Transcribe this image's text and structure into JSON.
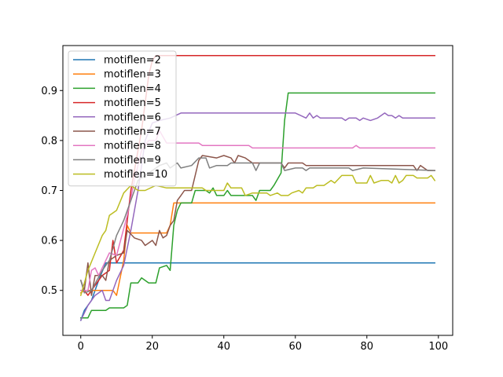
{
  "chart_data": {
    "type": "line",
    "title": "",
    "xlabel": "",
    "ylabel": "",
    "xlim": [
      -5,
      104
    ],
    "ylim": [
      0.41,
      0.99
    ],
    "xticks": [
      0,
      20,
      40,
      60,
      80,
      100
    ],
    "yticks": [
      0.5,
      0.6,
      0.7,
      0.8,
      0.9
    ],
    "ytick_labels": [
      "0.5",
      "0.6",
      "0.7",
      "0.8",
      "0.9"
    ],
    "grid": false,
    "legend": "upper left",
    "series": [
      {
        "name": "motiflen=2",
        "color": "#1f77b4",
        "points": [
          [
            0,
            0.44
          ],
          [
            1,
            0.46
          ],
          [
            3,
            0.48
          ],
          [
            5,
            0.52
          ],
          [
            7,
            0.555
          ],
          [
            99,
            0.555
          ]
        ]
      },
      {
        "name": "motiflen=3",
        "color": "#ff7f0e",
        "points": [
          [
            0,
            0.495
          ],
          [
            1,
            0.5
          ],
          [
            9,
            0.5
          ],
          [
            10,
            0.49
          ],
          [
            12,
            0.56
          ],
          [
            13,
            0.63
          ],
          [
            14,
            0.615
          ],
          [
            24,
            0.615
          ],
          [
            25,
            0.63
          ],
          [
            26,
            0.675
          ],
          [
            99,
            0.675
          ]
        ]
      },
      {
        "name": "motiflen=4",
        "color": "#2ca02c",
        "points": [
          [
            0,
            0.445
          ],
          [
            2,
            0.445
          ],
          [
            3,
            0.46
          ],
          [
            7,
            0.46
          ],
          [
            8,
            0.465
          ],
          [
            12,
            0.465
          ],
          [
            13,
            0.47
          ],
          [
            14,
            0.515
          ],
          [
            16,
            0.515
          ],
          [
            17,
            0.525
          ],
          [
            19,
            0.515
          ],
          [
            21,
            0.515
          ],
          [
            22,
            0.545
          ],
          [
            24,
            0.55
          ],
          [
            25,
            0.54
          ],
          [
            26,
            0.63
          ],
          [
            27,
            0.66
          ],
          [
            28,
            0.675
          ],
          [
            31,
            0.675
          ],
          [
            32,
            0.7
          ],
          [
            35,
            0.7
          ],
          [
            36,
            0.695
          ],
          [
            37,
            0.705
          ],
          [
            38,
            0.69
          ],
          [
            40,
            0.69
          ],
          [
            41,
            0.7
          ],
          [
            42,
            0.69
          ],
          [
            48,
            0.69
          ],
          [
            49,
            0.68
          ],
          [
            50,
            0.7
          ],
          [
            53,
            0.7
          ],
          [
            54,
            0.71
          ],
          [
            56,
            0.735
          ],
          [
            57,
            0.84
          ],
          [
            58,
            0.895
          ],
          [
            99,
            0.895
          ]
        ]
      },
      {
        "name": "motiflen=5",
        "color": "#d62728",
        "points": [
          [
            0,
            0.5
          ],
          [
            1,
            0.5
          ],
          [
            2,
            0.49
          ],
          [
            3,
            0.5
          ],
          [
            6,
            0.53
          ],
          [
            8,
            0.54
          ],
          [
            9,
            0.6
          ],
          [
            10,
            0.555
          ],
          [
            12,
            0.58
          ],
          [
            14,
            0.7
          ],
          [
            17,
            0.82
          ],
          [
            19,
            0.93
          ],
          [
            20,
            0.96
          ],
          [
            21,
            0.97
          ],
          [
            99,
            0.97
          ]
        ]
      },
      {
        "name": "motiflen=6",
        "color": "#9467bd",
        "points": [
          [
            0,
            0.44
          ],
          [
            2,
            0.47
          ],
          [
            4,
            0.49
          ],
          [
            6,
            0.5
          ],
          [
            7,
            0.48
          ],
          [
            8,
            0.48
          ],
          [
            10,
            0.52
          ],
          [
            12,
            0.55
          ],
          [
            14,
            0.62
          ],
          [
            16,
            0.7
          ],
          [
            18,
            0.8
          ],
          [
            20,
            0.835
          ],
          [
            22,
            0.84
          ],
          [
            25,
            0.845
          ],
          [
            28,
            0.855
          ],
          [
            60,
            0.855
          ],
          [
            63,
            0.845
          ],
          [
            64,
            0.855
          ],
          [
            65,
            0.845
          ],
          [
            66,
            0.85
          ],
          [
            67,
            0.845
          ],
          [
            73,
            0.845
          ],
          [
            74,
            0.84
          ],
          [
            75,
            0.845
          ],
          [
            77,
            0.845
          ],
          [
            78,
            0.84
          ],
          [
            79,
            0.845
          ],
          [
            81,
            0.84
          ],
          [
            83,
            0.845
          ],
          [
            85,
            0.855
          ],
          [
            86,
            0.85
          ],
          [
            87,
            0.85
          ],
          [
            88,
            0.845
          ],
          [
            89,
            0.85
          ],
          [
            90,
            0.845
          ],
          [
            98,
            0.845
          ],
          [
            99,
            0.845
          ]
        ]
      },
      {
        "name": "motiflen=7",
        "color": "#8c564b",
        "points": [
          [
            0,
            0.52
          ],
          [
            1,
            0.5
          ],
          [
            2,
            0.555
          ],
          [
            3,
            0.49
          ],
          [
            4,
            0.53
          ],
          [
            6,
            0.53
          ],
          [
            7,
            0.52
          ],
          [
            8,
            0.56
          ],
          [
            10,
            0.57
          ],
          [
            12,
            0.575
          ],
          [
            13,
            0.62
          ],
          [
            15,
            0.605
          ],
          [
            17,
            0.6
          ],
          [
            18,
            0.59
          ],
          [
            20,
            0.6
          ],
          [
            21,
            0.59
          ],
          [
            22,
            0.62
          ],
          [
            23,
            0.605
          ],
          [
            24,
            0.61
          ],
          [
            25,
            0.63
          ],
          [
            26,
            0.64
          ],
          [
            27,
            0.68
          ],
          [
            28,
            0.69
          ],
          [
            29,
            0.7
          ],
          [
            31,
            0.7
          ],
          [
            33,
            0.76
          ],
          [
            34,
            0.77
          ],
          [
            38,
            0.765
          ],
          [
            40,
            0.77
          ],
          [
            42,
            0.765
          ],
          [
            43,
            0.755
          ],
          [
            44,
            0.77
          ],
          [
            46,
            0.765
          ],
          [
            48,
            0.755
          ],
          [
            56,
            0.755
          ],
          [
            57,
            0.745
          ],
          [
            58,
            0.755
          ],
          [
            62,
            0.755
          ],
          [
            63,
            0.75
          ],
          [
            93,
            0.75
          ],
          [
            94,
            0.74
          ],
          [
            95,
            0.75
          ],
          [
            97,
            0.74
          ],
          [
            99,
            0.74
          ]
        ]
      },
      {
        "name": "motiflen=8",
        "color": "#e377c2",
        "points": [
          [
            0,
            0.5
          ],
          [
            2,
            0.5
          ],
          [
            3,
            0.54
          ],
          [
            4,
            0.545
          ],
          [
            5,
            0.53
          ],
          [
            7,
            0.56
          ],
          [
            8,
            0.575
          ],
          [
            10,
            0.57
          ],
          [
            13,
            0.65
          ],
          [
            15,
            0.72
          ],
          [
            17,
            0.78
          ],
          [
            19,
            0.8
          ],
          [
            21,
            0.8
          ],
          [
            22,
            0.82
          ],
          [
            24,
            0.795
          ],
          [
            33,
            0.795
          ],
          [
            34,
            0.79
          ],
          [
            47,
            0.79
          ],
          [
            48,
            0.785
          ],
          [
            76,
            0.785
          ],
          [
            77,
            0.79
          ],
          [
            78,
            0.785
          ],
          [
            99,
            0.785
          ]
        ]
      },
      {
        "name": "motiflen=9",
        "color": "#7f7f7f",
        "points": [
          [
            0,
            0.52
          ],
          [
            1,
            0.495
          ],
          [
            3,
            0.5
          ],
          [
            6,
            0.54
          ],
          [
            8,
            0.56
          ],
          [
            10,
            0.61
          ],
          [
            12,
            0.64
          ],
          [
            14,
            0.68
          ],
          [
            16,
            0.72
          ],
          [
            18,
            0.73
          ],
          [
            20,
            0.74
          ],
          [
            22,
            0.75
          ],
          [
            24,
            0.755
          ],
          [
            25,
            0.745
          ],
          [
            27,
            0.755
          ],
          [
            28,
            0.745
          ],
          [
            31,
            0.75
          ],
          [
            33,
            0.765
          ],
          [
            35,
            0.765
          ],
          [
            36,
            0.745
          ],
          [
            38,
            0.75
          ],
          [
            41,
            0.75
          ],
          [
            42,
            0.755
          ],
          [
            48,
            0.755
          ],
          [
            49,
            0.74
          ],
          [
            50,
            0.755
          ],
          [
            56,
            0.755
          ],
          [
            57,
            0.74
          ],
          [
            60,
            0.745
          ],
          [
            61,
            0.745
          ],
          [
            62,
            0.745
          ],
          [
            63,
            0.74
          ],
          [
            64,
            0.745
          ],
          [
            75,
            0.745
          ],
          [
            76,
            0.74
          ],
          [
            79,
            0.745
          ],
          [
            99,
            0.74
          ]
        ]
      },
      {
        "name": "motiflen=10",
        "color": "#bcbd22",
        "points": [
          [
            0,
            0.49
          ],
          [
            2,
            0.54
          ],
          [
            4,
            0.575
          ],
          [
            6,
            0.61
          ],
          [
            7,
            0.62
          ],
          [
            8,
            0.65
          ],
          [
            10,
            0.66
          ],
          [
            12,
            0.695
          ],
          [
            14,
            0.71
          ],
          [
            16,
            0.7
          ],
          [
            18,
            0.7
          ],
          [
            21,
            0.71
          ],
          [
            24,
            0.705
          ],
          [
            34,
            0.705
          ],
          [
            35,
            0.7
          ],
          [
            40,
            0.7
          ],
          [
            41,
            0.715
          ],
          [
            42,
            0.705
          ],
          [
            45,
            0.705
          ],
          [
            46,
            0.69
          ],
          [
            48,
            0.695
          ],
          [
            52,
            0.695
          ],
          [
            53,
            0.69
          ],
          [
            55,
            0.695
          ],
          [
            56,
            0.69
          ],
          [
            58,
            0.69
          ],
          [
            59,
            0.695
          ],
          [
            61,
            0.7
          ],
          [
            62,
            0.695
          ],
          [
            63,
            0.705
          ],
          [
            65,
            0.705
          ],
          [
            66,
            0.71
          ],
          [
            68,
            0.71
          ],
          [
            70,
            0.72
          ],
          [
            71,
            0.715
          ],
          [
            73,
            0.73
          ],
          [
            76,
            0.73
          ],
          [
            77,
            0.715
          ],
          [
            78,
            0.715
          ],
          [
            80,
            0.715
          ],
          [
            81,
            0.73
          ],
          [
            82,
            0.715
          ],
          [
            84,
            0.72
          ],
          [
            86,
            0.72
          ],
          [
            87,
            0.715
          ],
          [
            88,
            0.73
          ],
          [
            89,
            0.715
          ],
          [
            90,
            0.72
          ],
          [
            91,
            0.73
          ],
          [
            93,
            0.73
          ],
          [
            94,
            0.725
          ],
          [
            97,
            0.725
          ],
          [
            98,
            0.73
          ],
          [
            99,
            0.72
          ]
        ]
      }
    ]
  }
}
